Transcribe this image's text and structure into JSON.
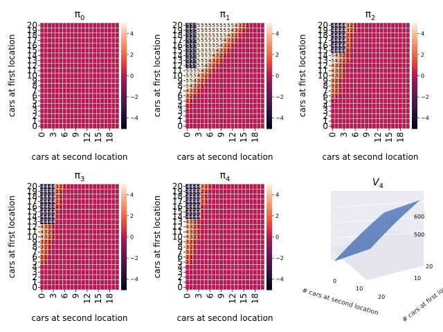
{
  "figure": {
    "title_v": "V",
    "title_v_sub": "4",
    "policy_symbol": "π"
  },
  "chart_data": [
    {
      "type": "heatmap",
      "title": "π",
      "subscript": "0",
      "xlabel": "cars at second location",
      "ylabel": "cars at first location",
      "x_ticks": [
        "0",
        "3",
        "6",
        "9",
        "12",
        "15",
        "18"
      ],
      "y_ticks": [
        "20",
        "19",
        "18",
        "17",
        "16",
        "15",
        "14",
        "13",
        "12",
        "11",
        "10",
        "9",
        "8",
        "7",
        "6",
        "5",
        "4",
        "3",
        "2",
        "1",
        "0"
      ],
      "colorbar_ticks": [
        "4",
        "2",
        "0",
        "−2",
        "−4"
      ],
      "vmin": -5,
      "vmax": 5,
      "policy": "pi0"
    },
    {
      "type": "heatmap",
      "title": "π",
      "subscript": "1",
      "xlabel": "cars at second location",
      "ylabel": "cars at first location",
      "x_ticks": [
        "0",
        "3",
        "6",
        "9",
        "12",
        "15",
        "18"
      ],
      "y_ticks": [
        "20",
        "19",
        "18",
        "17",
        "16",
        "15",
        "14",
        "13",
        "12",
        "11",
        "10",
        "9",
        "8",
        "7",
        "6",
        "5",
        "4",
        "3",
        "2",
        "1",
        "0"
      ],
      "colorbar_ticks": [
        "4",
        "2",
        "0",
        "−2",
        "−4"
      ],
      "vmin": -5,
      "vmax": 5,
      "policy": "pi1"
    },
    {
      "type": "heatmap",
      "title": "π",
      "subscript": "2",
      "xlabel": "cars at second location",
      "ylabel": "cars at first location",
      "x_ticks": [
        "0",
        "3",
        "6",
        "9",
        "12",
        "15",
        "18"
      ],
      "y_ticks": [
        "20",
        "19",
        "18",
        "17",
        "16",
        "15",
        "14",
        "13",
        "12",
        "11",
        "10",
        "9",
        "8",
        "7",
        "6",
        "5",
        "4",
        "3",
        "2",
        "1",
        "0"
      ],
      "colorbar_ticks": [
        "4",
        "2",
        "0",
        "−2",
        "−4"
      ],
      "vmin": -5,
      "vmax": 5,
      "policy": "pi2"
    },
    {
      "type": "heatmap",
      "title": "π",
      "subscript": "3",
      "xlabel": "cars at second location",
      "ylabel": "cars at first location",
      "x_ticks": [
        "0",
        "3",
        "6",
        "9",
        "12",
        "15",
        "18"
      ],
      "y_ticks": [
        "20",
        "19",
        "18",
        "17",
        "16",
        "15",
        "14",
        "13",
        "12",
        "11",
        "10",
        "9",
        "8",
        "7",
        "6",
        "5",
        "4",
        "3",
        "2",
        "1",
        "0"
      ],
      "colorbar_ticks": [
        "4",
        "2",
        "0",
        "−2",
        "−4"
      ],
      "vmin": -5,
      "vmax": 5,
      "policy": "pi3"
    },
    {
      "type": "heatmap",
      "title": "π",
      "subscript": "4",
      "xlabel": "cars at second location",
      "ylabel": "cars at first location",
      "x_ticks": [
        "0",
        "3",
        "6",
        "9",
        "12",
        "15",
        "18"
      ],
      "y_ticks": [
        "20",
        "19",
        "18",
        "17",
        "16",
        "15",
        "14",
        "13",
        "12",
        "11",
        "10",
        "9",
        "8",
        "7",
        "6",
        "5",
        "4",
        "3",
        "2",
        "1",
        "0"
      ],
      "colorbar_ticks": [
        "4",
        "2",
        "0",
        "−2",
        "−4"
      ],
      "vmin": -5,
      "vmax": 5,
      "policy": "pi4"
    },
    {
      "type": "surface",
      "title": "V",
      "subscript": "4",
      "xlabel": "# cars at second location",
      "ylabel": "# cars at first location",
      "x_ticks": [
        "0",
        "10",
        "20"
      ],
      "y_ticks": [
        "10",
        "20"
      ],
      "z_ticks": [
        "500",
        "600"
      ],
      "zlim": [
        420,
        620
      ],
      "surface_color": "#4c72b0"
    }
  ]
}
